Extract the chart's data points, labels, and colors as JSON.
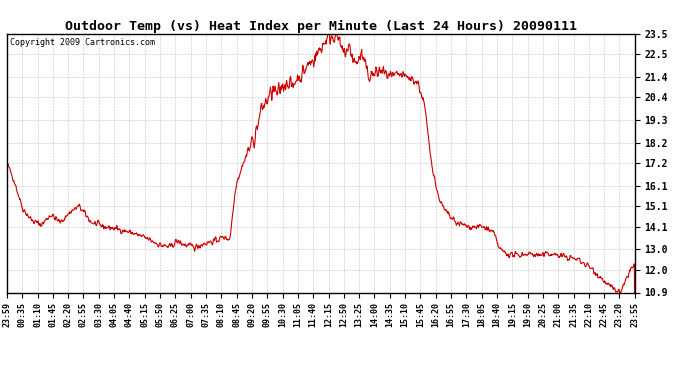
{
  "title": "Outdoor Temp (vs) Heat Index per Minute (Last 24 Hours) 20090111",
  "copyright": "Copyright 2009 Cartronics.com",
  "line_color": "#cc0000",
  "background_color": "#ffffff",
  "grid_color": "#bbbbbb",
  "yticks": [
    10.9,
    12.0,
    13.0,
    14.1,
    15.1,
    16.1,
    17.2,
    18.2,
    19.3,
    20.4,
    21.4,
    22.5,
    23.5
  ],
  "ylim": [
    10.9,
    23.5
  ],
  "xtick_labels": [
    "23:59",
    "00:35",
    "01:10",
    "01:45",
    "02:20",
    "02:55",
    "03:30",
    "04:05",
    "04:40",
    "05:15",
    "05:50",
    "06:25",
    "07:00",
    "07:35",
    "08:10",
    "08:45",
    "09:20",
    "09:55",
    "10:30",
    "11:05",
    "11:40",
    "12:15",
    "12:50",
    "13:25",
    "14:00",
    "14:35",
    "15:10",
    "15:45",
    "16:20",
    "16:55",
    "17:30",
    "18:05",
    "18:40",
    "19:15",
    "19:50",
    "20:25",
    "21:00",
    "21:35",
    "22:10",
    "22:45",
    "23:20",
    "23:55"
  ],
  "figsize": [
    6.9,
    3.75
  ],
  "dpi": 100
}
